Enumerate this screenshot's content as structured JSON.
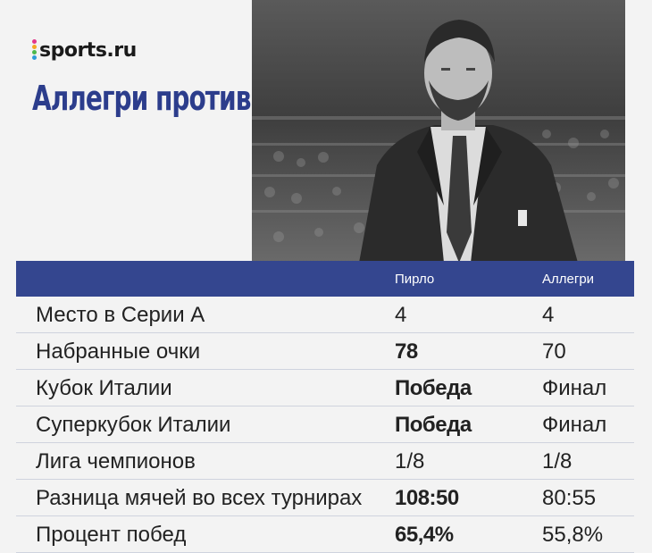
{
  "brand": {
    "name": "sports.ru",
    "dot_colors": [
      "#e4358a",
      "#f6a623",
      "#4cb84c",
      "#2d9bd8"
    ]
  },
  "headline": "Аллегри против Пирло",
  "table": {
    "header": {
      "col1": "",
      "col2": "Пирло",
      "col3": "Аллегри"
    },
    "rows": [
      {
        "label": "Место в Серии А",
        "pirlo": "4",
        "allegri": "4",
        "pirlo_bold": false
      },
      {
        "label": "Набранные очки",
        "pirlo": "78",
        "allegri": "70",
        "pirlo_bold": true
      },
      {
        "label": "Кубок Италии",
        "pirlo": "Победа",
        "allegri": "Финал",
        "pirlo_bold": true
      },
      {
        "label": "Суперкубок Италии",
        "pirlo": "Победа",
        "allegri": "Финал",
        "pirlo_bold": true
      },
      {
        "label": "Лига чемпионов",
        "pirlo": "1/8",
        "allegri": "1/8",
        "pirlo_bold": false
      },
      {
        "label": "Разница мячей во всех турнирах",
        "pirlo": "108:50",
        "allegri": "80:55",
        "pirlo_bold": true
      },
      {
        "label": "Процент побед",
        "pirlo": "65,4%",
        "allegri": "55,8%",
        "pirlo_bold": true
      }
    ]
  },
  "colors": {
    "header_bg": "#34468f",
    "headline": "#2c3d8c",
    "row_divider": "#cfd3de"
  }
}
